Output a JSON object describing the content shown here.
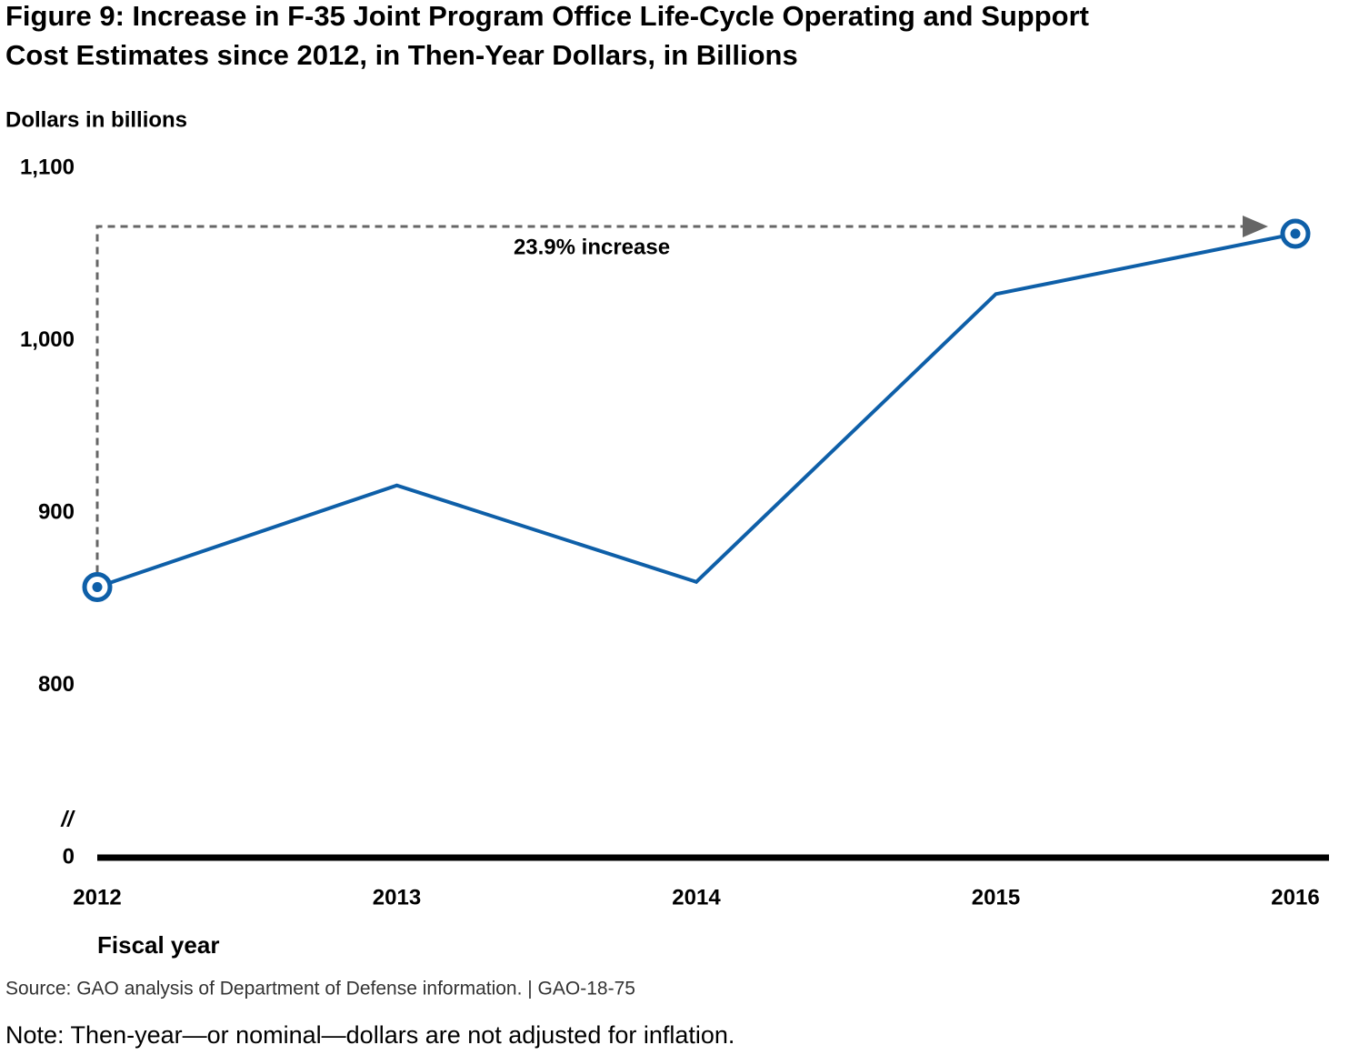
{
  "chart_data": {
    "type": "line",
    "title": "Figure 9: Increase in F-35 Joint Program Office Life-Cycle Operating and Support",
    "title_line2": "Cost Estimates since 2012, in Then-Year Dollars, in Billions",
    "y_label": "Dollars in billions",
    "x_label": "Fiscal year",
    "x": [
      2012,
      2013,
      2014,
      2015,
      2016
    ],
    "xlim": [
      2012,
      2016
    ],
    "xticks": [
      2012,
      2013,
      2014,
      2015,
      2016
    ],
    "series": [
      {
        "name": "Life-cycle O&S cost estimate",
        "color": "#0e5fa8",
        "values": [
          857,
          916,
          860,
          1027,
          1062
        ]
      }
    ],
    "ylim": [
      0,
      1100
    ],
    "yticks": [
      0,
      800,
      900,
      {
        "value": 1000,
        "label": "1,000"
      },
      {
        "value": 1100,
        "label": "1,100"
      }
    ],
    "axis_break": true,
    "axis_break_label": "//",
    "annotation": "23.9% increase",
    "source": "Source: GAO analysis of Department of Defense information.  |  GAO-18-75",
    "note": "Note: Then-year—or nominal—dollars are not adjusted for inflation."
  }
}
